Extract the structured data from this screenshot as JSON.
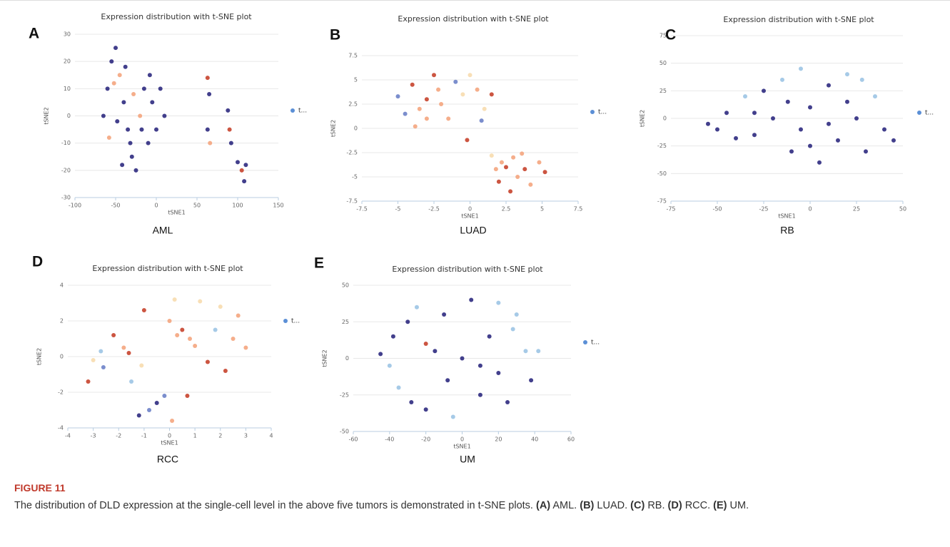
{
  "chart_data": [
    {
      "type": "scatter",
      "panel_label": "A",
      "title": "Expression distribution with t-SNE plot",
      "caption": "AML",
      "x_label": "tSNE1",
      "y_label": "tSNE2",
      "xlim": [
        -100,
        150
      ],
      "xticks": [
        -100,
        -50,
        0,
        50,
        100,
        150
      ],
      "ylim": [
        -30,
        30
      ],
      "yticks": [
        -30,
        -20,
        -10,
        0,
        10,
        20,
        30
      ],
      "grid": true,
      "series": [
        {
          "name": "t...",
          "color": "#5b8fd6",
          "x": [
            -60,
            -55,
            -50,
            -45,
            -40,
            -35,
            -30,
            -25,
            -20,
            -15,
            -10,
            -5,
            0,
            5,
            10,
            -65,
            -58,
            -48,
            -38,
            -28,
            -18,
            -8,
            -42,
            -52,
            -32,
            63,
            65,
            66,
            63,
            88,
            90,
            92,
            100,
            105,
            108,
            110
          ],
          "values": [
            10,
            20,
            25,
            15,
            5,
            -5,
            -15,
            -20,
            0,
            10,
            -10,
            5,
            -5,
            10,
            0,
            0,
            -8,
            -2,
            18,
            8,
            -5,
            15,
            -18,
            12,
            -10,
            14,
            8,
            -10,
            -5,
            2,
            -5,
            -10,
            -17,
            -20,
            -24,
            -18
          ],
          "point_colors": [
            "#2e2a80",
            "#2e2a80",
            "#2e2a80",
            "#f4a57e",
            "#2e2a80",
            "#2e2a80",
            "#2e2a80",
            "#2e2a80",
            "#f4a57e",
            "#2e2a80",
            "#2e2a80",
            "#2e2a80",
            "#2e2a80",
            "#2e2a80",
            "#2e2a80",
            "#2e2a80",
            "#f4a57e",
            "#2e2a80",
            "#2e2a80",
            "#f4a57e",
            "#2e2a80",
            "#2e2a80",
            "#2e2a80",
            "#f4a57e",
            "#2e2a80",
            "#c6432c",
            "#2e2a80",
            "#f4a57e",
            "#2e2a80",
            "#2e2a80",
            "#c6432c",
            "#2e2a80",
            "#2e2a80",
            "#c6432c",
            "#2e2a80",
            "#2e2a80"
          ]
        }
      ]
    },
    {
      "type": "scatter",
      "panel_label": "B",
      "title": "Expression distribution with t-SNE plot",
      "caption": "LUAD",
      "x_label": "tSNE1",
      "y_label": "tSNE2",
      "xlim": [
        -7.5,
        7.5
      ],
      "xticks": [
        -7.5,
        -5,
        -2.5,
        0,
        2.5,
        5,
        7.5
      ],
      "ylim": [
        -7.5,
        7.5
      ],
      "yticks": [
        -7.5,
        -5,
        -2.5,
        0,
        2.5,
        5,
        7.5
      ],
      "grid": true,
      "series": [
        {
          "name": "t...",
          "color": "#5b8fd6",
          "x": [
            -5,
            -4.5,
            -4,
            -3.5,
            -3,
            -3,
            -2.5,
            -2,
            -1.5,
            -1,
            -0.5,
            0,
            0.5,
            1,
            1.5,
            -0.2,
            -3.8,
            -2.2,
            0.8,
            1.8,
            2,
            2.5,
            3,
            3.3,
            3.8,
            4.2,
            4.8,
            5.2,
            2.8,
            1.5,
            3.6,
            2.2
          ],
          "values": [
            3.3,
            1.5,
            4.5,
            2,
            3,
            1,
            5.5,
            2.5,
            1,
            4.8,
            3.5,
            5.5,
            4,
            2,
            3.5,
            -1.2,
            0.2,
            4,
            0.8,
            -4.2,
            -5.5,
            -4,
            -3,
            -5,
            -4.2,
            -5.8,
            -3.5,
            -4.5,
            -6.5,
            -2.8,
            -2.6,
            -3.5
          ],
          "point_colors": [
            "#6d82c8",
            "#6d82c8",
            "#c6432c",
            "#f4a57e",
            "#c6432c",
            "#f4a57e",
            "#c6432c",
            "#f4a57e",
            "#f4a57e",
            "#6d82c8",
            "#f7dcae",
            "#f7dcae",
            "#f4a57e",
            "#f7dcae",
            "#c6432c",
            "#c6432c",
            "#f4a57e",
            "#f4a57e",
            "#6d82c8",
            "#f4a57e",
            "#c6432c",
            "#c6432c",
            "#f4a57e",
            "#f4a57e",
            "#c6432c",
            "#f4a57e",
            "#f4a57e",
            "#c6432c",
            "#c6432c",
            "#f7dcae",
            "#f4a57e",
            "#f4a57e"
          ]
        }
      ]
    },
    {
      "type": "scatter",
      "panel_label": "C",
      "title": "Expression distribution with t-SNE plot",
      "caption": "RB",
      "x_label": "tSNE1",
      "y_label": "tSNE2",
      "xlim": [
        -75,
        50
      ],
      "xticks": [
        -75,
        -50,
        -25,
        0,
        25,
        50
      ],
      "ylim": [
        -75,
        75
      ],
      "yticks": [
        -75,
        -50,
        -25,
        0,
        25,
        50,
        75
      ],
      "grid": true,
      "series": [
        {
          "name": "t...",
          "color": "#5b8fd6",
          "x": [
            -55,
            -50,
            -45,
            -40,
            -35,
            -30,
            -25,
            -20,
            -15,
            -10,
            -5,
            0,
            5,
            10,
            15,
            20,
            25,
            30,
            35,
            40,
            -5,
            10,
            -30,
            20,
            0,
            45,
            -12,
            28
          ],
          "values": [
            -5,
            -10,
            5,
            -18,
            20,
            -15,
            25,
            0,
            35,
            -30,
            45,
            10,
            -40,
            30,
            -20,
            40,
            0,
            -30,
            20,
            -10,
            -10,
            -5,
            5,
            15,
            -25,
            -20,
            15,
            35
          ],
          "point_colors": [
            "#2e2a80",
            "#2e2a80",
            "#2e2a80",
            "#2e2a80",
            "#9cc4e4",
            "#2e2a80",
            "#2e2a80",
            "#2e2a80",
            "#9cc4e4",
            "#2e2a80",
            "#9cc4e4",
            "#2e2a80",
            "#2e2a80",
            "#2e2a80",
            "#2e2a80",
            "#9cc4e4",
            "#2e2a80",
            "#2e2a80",
            "#9cc4e4",
            "#2e2a80",
            "#2e2a80",
            "#2e2a80",
            "#2e2a80",
            "#2e2a80",
            "#2e2a80",
            "#2e2a80",
            "#2e2a80",
            "#9cc4e4"
          ]
        }
      ]
    },
    {
      "type": "scatter",
      "panel_label": "D",
      "title": "Expression distribution with t-SNE plot",
      "caption": "RCC",
      "x_label": "tSNE1",
      "y_label": "tSNE2",
      "xlim": [
        -4,
        4
      ],
      "xticks": [
        -4,
        -3,
        -2,
        -1,
        0,
        1,
        2,
        3,
        4
      ],
      "ylim": [
        -4,
        4
      ],
      "yticks": [
        -4,
        -2,
        0,
        2,
        4
      ],
      "grid": true,
      "series": [
        {
          "name": "t...",
          "color": "#5b8fd6",
          "x": [
            -3.2,
            -3,
            -2.7,
            -2.6,
            -2.2,
            -1.8,
            -1.6,
            -1.5,
            -1.2,
            -1,
            -0.8,
            -0.5,
            -0.2,
            0,
            0.2,
            0.3,
            0.5,
            0.8,
            1,
            1.2,
            1.5,
            1.8,
            2,
            2.2,
            2.7,
            3,
            2.5,
            0.1,
            -1.1,
            0.7
          ],
          "values": [
            -1.4,
            -0.2,
            0.3,
            -0.6,
            1.2,
            0.5,
            0.2,
            -1.4,
            -3.3,
            2.6,
            -3,
            -2.6,
            -2.2,
            2,
            3.2,
            1.2,
            1.5,
            1,
            0.6,
            3.1,
            -0.3,
            1.5,
            2.8,
            -0.8,
            2.3,
            0.5,
            1,
            -3.6,
            -0.5,
            -2.2
          ],
          "point_colors": [
            "#c6432c",
            "#f7dcae",
            "#9cc4e4",
            "#6d82c8",
            "#c6432c",
            "#f4a57e",
            "#c6432c",
            "#9cc4e4",
            "#2e2a80",
            "#c6432c",
            "#6d82c8",
            "#2e2a80",
            "#6d82c8",
            "#f4a57e",
            "#f7dcae",
            "#f4a57e",
            "#c6432c",
            "#f4a57e",
            "#f4a57e",
            "#f7dcae",
            "#c6432c",
            "#9cc4e4",
            "#f7dcae",
            "#c6432c",
            "#f4a57e",
            "#f4a57e",
            "#f4a57e",
            "#f4a57e",
            "#f7dcae",
            "#c6432c"
          ]
        }
      ]
    },
    {
      "type": "scatter",
      "panel_label": "E",
      "title": "Expression distribution with t-SNE plot",
      "caption": "UM",
      "x_label": "tSNE1",
      "y_label": "tSNE2",
      "xlim": [
        -60,
        60
      ],
      "xticks": [
        -60,
        -40,
        -20,
        0,
        20,
        40,
        60
      ],
      "ylim": [
        -50,
        50
      ],
      "yticks": [
        -50,
        -25,
        0,
        25,
        50
      ],
      "grid": true,
      "series": [
        {
          "name": "t...",
          "color": "#5b8fd6",
          "x": [
            -40,
            -38,
            -35,
            -30,
            -25,
            -20,
            -15,
            -10,
            -5,
            0,
            5,
            10,
            15,
            20,
            25,
            30,
            35,
            38,
            42,
            -45,
            -20,
            10,
            -8,
            20,
            28,
            -28
          ],
          "values": [
            -5,
            15,
            -20,
            25,
            35,
            -35,
            5,
            30,
            -40,
            0,
            40,
            -25,
            15,
            38,
            -30,
            30,
            5,
            -15,
            5,
            3,
            10,
            -5,
            -15,
            -10,
            20,
            -30
          ],
          "point_colors": [
            "#9cc4e4",
            "#2e2a80",
            "#9cc4e4",
            "#2e2a80",
            "#9cc4e4",
            "#2e2a80",
            "#2e2a80",
            "#2e2a80",
            "#9cc4e4",
            "#2e2a80",
            "#2e2a80",
            "#2e2a80",
            "#2e2a80",
            "#9cc4e4",
            "#2e2a80",
            "#9cc4e4",
            "#9cc4e4",
            "#2e2a80",
            "#9cc4e4",
            "#2e2a80",
            "#c6432c",
            "#2e2a80",
            "#2e2a80",
            "#2e2a80",
            "#9cc4e4",
            "#2e2a80"
          ]
        }
      ]
    }
  ],
  "figure_caption": {
    "label": "FIGURE 11",
    "segments": [
      {
        "text": "The distribution of DLD expression at the single-cell level in the above five tumors is demonstrated in t-SNE plots. ",
        "bold": false
      },
      {
        "text": "(A)",
        "bold": true
      },
      {
        "text": " AML. ",
        "bold": false
      },
      {
        "text": "(B)",
        "bold": true
      },
      {
        "text": " LUAD. ",
        "bold": false
      },
      {
        "text": "(C)",
        "bold": true
      },
      {
        "text": " RB. ",
        "bold": false
      },
      {
        "text": "(D)",
        "bold": true
      },
      {
        "text": " RCC. ",
        "bold": false
      },
      {
        "text": "(E)",
        "bold": true
      },
      {
        "text": " UM.",
        "bold": false
      }
    ]
  }
}
